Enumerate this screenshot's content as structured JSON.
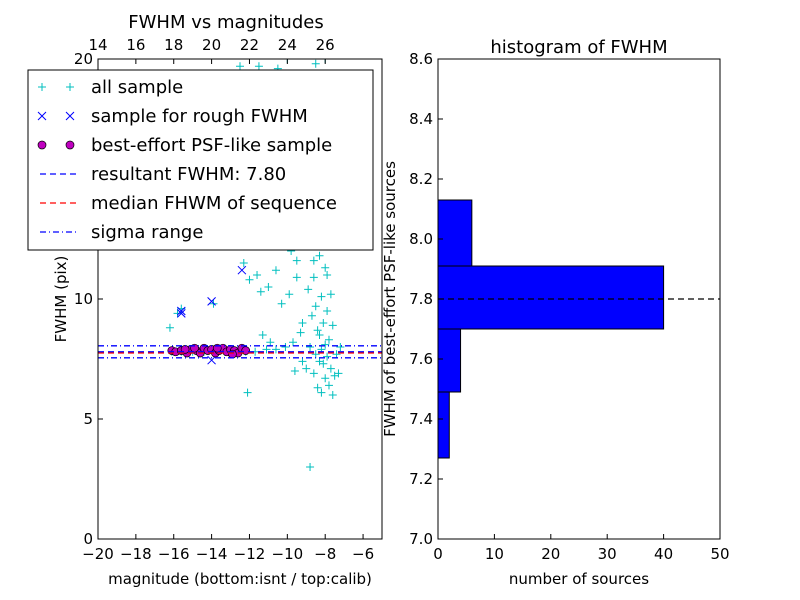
{
  "chart_data": [
    {
      "type": "scatter",
      "title": "FWHM vs magnitudes",
      "xlabel": "magnitude (bottom:isnt / top:calib)",
      "ylabel": "FWHM (pix)",
      "xlim": [
        -20,
        -5
      ],
      "ylim": [
        0,
        20
      ],
      "x_ticks": [
        -20,
        -18,
        -16,
        -14,
        -12,
        -10,
        -8,
        -6
      ],
      "x_tick_labels": [
        "−20",
        "−18",
        "−16",
        "−14",
        "−12",
        "−10",
        "−8",
        "−6"
      ],
      "y_ticks": [
        0,
        5,
        10,
        15,
        20
      ],
      "y_tick_labels": [
        "0",
        "5",
        "10",
        "15",
        "20"
      ],
      "top_axis": {
        "ticks": [
          14,
          16,
          18,
          20,
          22,
          24,
          26
        ],
        "tick_labels": [
          "14",
          "16",
          "18",
          "20",
          "22",
          "24",
          "26"
        ],
        "offset": 34
      },
      "grid": false,
      "legend": {
        "placement": "upper-left",
        "entries": [
          {
            "label": "all sample",
            "marker": "plus",
            "color": "#00bfbf"
          },
          {
            "label": "sample for rough FWHM",
            "marker": "x",
            "color": "#0000ff"
          },
          {
            "label": "best-effort PSF-like sample",
            "marker": "circle",
            "color": "#bf00bf"
          },
          {
            "label": "resultant FWHM: 7.80",
            "marker": "dashed-line",
            "color": "#0000ff"
          },
          {
            "label": "median FHWM of sequence",
            "marker": "dashed-line",
            "color": "#ff0000"
          },
          {
            "label": "sigma range",
            "marker": "dashdot-line",
            "color": "#0000ff"
          }
        ]
      },
      "series": [
        {
          "name": "all sample",
          "marker": "plus",
          "color": "#00bfbf",
          "points": [
            [
              -16.2,
              8.8
            ],
            [
              -15.8,
              9.4
            ],
            [
              -15.6,
              9.6
            ],
            [
              -13.9,
              9.8
            ],
            [
              -12.1,
              6.1
            ],
            [
              -12.3,
              11.5
            ],
            [
              -12.0,
              10.8
            ],
            [
              -11.6,
              11.0
            ],
            [
              -11.4,
              10.3
            ],
            [
              -11.0,
              10.5
            ],
            [
              -10.6,
              11.2
            ],
            [
              -10.3,
              9.8
            ],
            [
              -9.9,
              10.2
            ],
            [
              -9.5,
              10.9
            ],
            [
              -9.2,
              7.4
            ],
            [
              -9.6,
              7.0
            ],
            [
              -8.8,
              3.0
            ],
            [
              -8.2,
              6.1
            ],
            [
              -7.6,
              6.0
            ],
            [
              -8.0,
              20.0
            ],
            [
              -8.5,
              19.8
            ],
            [
              -8.3,
              18.5
            ],
            [
              -8.1,
              17.8
            ],
            [
              -8.7,
              16.9
            ],
            [
              -8.4,
              16.0
            ],
            [
              -8.0,
              15.3
            ],
            [
              -8.6,
              14.6
            ],
            [
              -8.2,
              13.9
            ],
            [
              -8.5,
              13.2
            ],
            [
              -8.1,
              12.6
            ],
            [
              -8.8,
              12.2
            ],
            [
              -8.3,
              11.8
            ],
            [
              -8.0,
              11.3
            ],
            [
              -8.6,
              10.9
            ],
            [
              -8.9,
              10.4
            ],
            [
              -8.2,
              10.1
            ],
            [
              -8.5,
              9.7
            ],
            [
              -8.7,
              9.3
            ],
            [
              -8.1,
              9.0
            ],
            [
              -8.4,
              8.7
            ],
            [
              -8.3,
              8.5
            ],
            [
              -7.8,
              8.3
            ],
            [
              -8.0,
              8.1
            ],
            [
              -8.2,
              7.9
            ],
            [
              -7.9,
              7.6
            ],
            [
              -8.1,
              7.3
            ],
            [
              -7.7,
              7.1
            ],
            [
              -7.5,
              6.8
            ],
            [
              -8.0,
              6.7
            ],
            [
              -7.3,
              6.9
            ],
            [
              -9.8,
              12.0
            ],
            [
              -9.5,
              11.6
            ],
            [
              -9.1,
              12.5
            ],
            [
              -8.9,
              13.3
            ],
            [
              -9.3,
              8.6
            ],
            [
              -9.7,
              8.2
            ],
            [
              -10.1,
              8.0
            ],
            [
              -10.6,
              7.9
            ],
            [
              -11.1,
              7.9
            ],
            [
              -11.7,
              7.8
            ],
            [
              -12.2,
              7.8
            ],
            [
              -12.8,
              7.8
            ],
            [
              -13.3,
              7.8
            ],
            [
              -13.8,
              7.9
            ],
            [
              -14.4,
              7.8
            ],
            [
              -15.0,
              7.8
            ],
            [
              -15.6,
              7.8
            ],
            [
              -16.1,
              7.8
            ],
            [
              -10.9,
              8.2
            ],
            [
              -11.3,
              8.5
            ],
            [
              -9.0,
              7.1
            ],
            [
              -8.6,
              6.9
            ],
            [
              -7.8,
              6.4
            ],
            [
              -8.4,
              6.3
            ],
            [
              -7.4,
              7.7
            ],
            [
              -7.2,
              8.0
            ],
            [
              -7.6,
              8.9
            ],
            [
              -7.9,
              9.5
            ],
            [
              -8.6,
              11.6
            ],
            [
              -8.3,
              12.9
            ],
            [
              -8.8,
              14.1
            ],
            [
              -8.1,
              16.6
            ],
            [
              -8.4,
              17.3
            ],
            [
              -8.7,
              18.1
            ],
            [
              -8.0,
              19.1
            ],
            [
              -10.0,
              20.0
            ],
            [
              -11.5,
              19.7
            ],
            [
              -12.5,
              19.7
            ],
            [
              -10.5,
              19.6
            ],
            [
              -8.3,
              7.4
            ],
            [
              -8.5,
              7.7
            ],
            [
              -8.8,
              8.0
            ],
            [
              -9.2,
              9.0
            ],
            [
              -7.7,
              10.2
            ],
            [
              -7.9,
              11.0
            ]
          ]
        },
        {
          "name": "sample for rough FWHM",
          "marker": "x",
          "color": "#0000ff",
          "points": [
            [
              -15.6,
              9.5
            ],
            [
              -15.6,
              9.4
            ],
            [
              -14.0,
              9.9
            ],
            [
              -12.4,
              11.2
            ],
            [
              -14.0,
              7.45
            ]
          ]
        },
        {
          "name": "best-effort PSF-like sample",
          "marker": "circle",
          "color": "#bf00bf",
          "points": [
            [
              -16.1,
              7.85
            ],
            [
              -15.9,
              7.8
            ],
            [
              -15.6,
              7.85
            ],
            [
              -15.3,
              7.75
            ],
            [
              -15.1,
              7.9
            ],
            [
              -14.8,
              7.85
            ],
            [
              -14.6,
              7.75
            ],
            [
              -14.4,
              7.95
            ],
            [
              -14.2,
              7.85
            ],
            [
              -14.0,
              7.9
            ],
            [
              -13.8,
              7.75
            ],
            [
              -13.6,
              7.85
            ],
            [
              -13.4,
              7.95
            ],
            [
              -13.2,
              7.8
            ],
            [
              -13.0,
              7.9
            ],
            [
              -12.8,
              7.85
            ],
            [
              -12.6,
              7.75
            ],
            [
              -12.4,
              7.95
            ],
            [
              -12.2,
              7.85
            ],
            [
              -14.9,
              7.95
            ],
            [
              -13.7,
              7.95
            ],
            [
              -12.9,
              7.7
            ],
            [
              -15.4,
              7.9
            ]
          ]
        }
      ],
      "hlines": [
        {
          "name": "resultant FWHM: 7.80",
          "y": 7.8,
          "style": "dashed",
          "color": "#0000ff"
        },
        {
          "name": "median FHWM of sequence",
          "y": 7.75,
          "style": "dashed",
          "color": "#ff0000"
        },
        {
          "name": "sigma range",
          "y": 8.05,
          "style": "dashdot",
          "color": "#0000ff"
        },
        {
          "name": "sigma range",
          "y": 7.55,
          "style": "dashdot",
          "color": "#0000ff"
        }
      ]
    },
    {
      "type": "bar",
      "orientation": "horizontal",
      "title": "histogram of FWHM",
      "xlabel": "number of sources",
      "ylabel": "FWHM of best-effort PSF-like sources",
      "xlim": [
        0,
        50
      ],
      "ylim": [
        7.0,
        8.6
      ],
      "x_ticks": [
        0,
        10,
        20,
        30,
        40,
        50
      ],
      "x_tick_labels": [
        "0",
        "10",
        "20",
        "30",
        "40",
        "50"
      ],
      "y_ticks": [
        7.0,
        7.2,
        7.4,
        7.6,
        7.8,
        8.0,
        8.2,
        8.4,
        8.6
      ],
      "y_tick_labels": [
        "7.0",
        "7.2",
        "7.4",
        "7.6",
        "7.8",
        "8.0",
        "8.2",
        "8.4",
        "8.6"
      ],
      "grid": false,
      "bar_color": "#0000ff",
      "bins": [
        {
          "from": 7.27,
          "to": 7.49,
          "count": 2
        },
        {
          "from": 7.49,
          "to": 7.7,
          "count": 4
        },
        {
          "from": 7.7,
          "to": 7.91,
          "count": 40
        },
        {
          "from": 7.91,
          "to": 8.13,
          "count": 6
        }
      ],
      "hlines": [
        {
          "y": 7.8,
          "style": "dashed",
          "color": "#000000"
        }
      ]
    }
  ]
}
